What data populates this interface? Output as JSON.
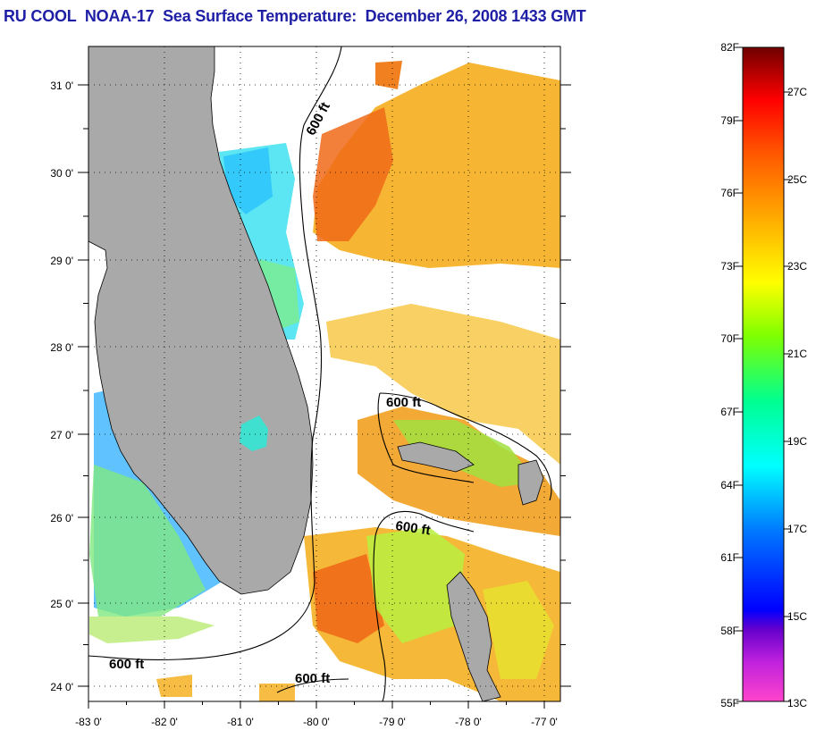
{
  "title": "RU COOL  NOAA-17  Sea Surface Temperature:  December 26, 2008 1433 GMT",
  "map": {
    "lon_ticks": [
      "-83 0'",
      "-82 0'",
      "-81 0'",
      "-80 0'",
      "-79 0'",
      "-78 0'",
      "-77 0'"
    ],
    "lat_ticks": [
      "31 0'",
      "30 0'",
      "29 0'",
      "28 0'",
      "27 0'",
      "26 0'",
      "25 0'",
      "24 0'"
    ],
    "lon_range": [
      -83,
      -76.8
    ],
    "lat_range": [
      23.8,
      31.45
    ],
    "land_color": "#a9a9a9",
    "contour_labels": [
      "600 ft",
      "600 ft",
      "600 ft",
      "600 ft",
      "600 ft"
    ]
  },
  "colorbar": {
    "fahrenheit_labels": [
      "82F",
      "79F",
      "76F",
      "73F",
      "70F",
      "67F",
      "64F",
      "61F",
      "58F",
      "55F"
    ],
    "celsius_labels": [
      "27C",
      "25C",
      "23C",
      "21C",
      "19C",
      "17C",
      "15C",
      "13C"
    ],
    "range_f": [
      55,
      82
    ],
    "colors": [
      "#ff44cc",
      "#b022cc",
      "#0000ff",
      "#0088ff",
      "#00ffff",
      "#00ff80",
      "#80ff00",
      "#ffff00",
      "#ffb000",
      "#ff6a00",
      "#ff1010",
      "#7a0000"
    ]
  }
}
